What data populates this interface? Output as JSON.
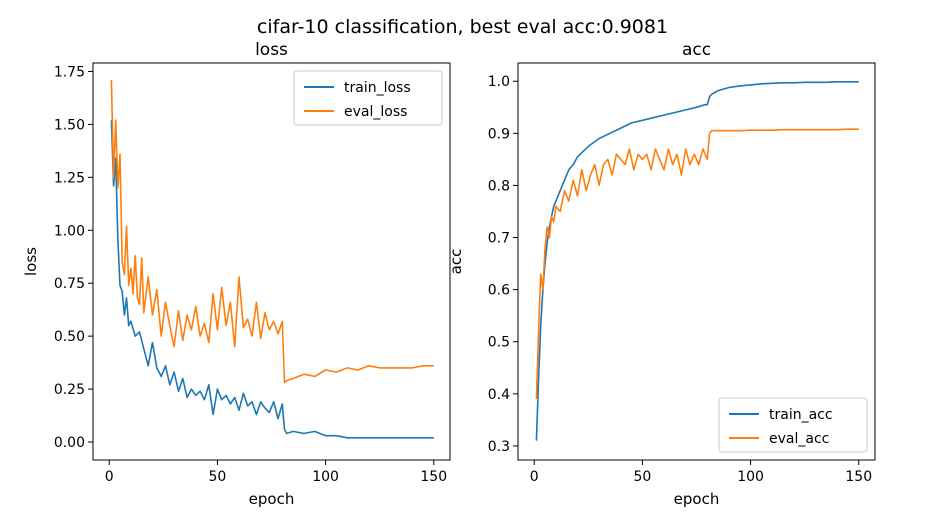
{
  "suptitle": "cifar-10 classification, best eval acc:0.9081",
  "colors": {
    "train": "#1f77b4",
    "eval": "#ff7f0e"
  },
  "chart_data": [
    {
      "type": "line",
      "title": "loss",
      "xlabel": "epoch",
      "ylabel": "loss",
      "xlim": [
        -7.5,
        157.5
      ],
      "ylim": [
        -0.085,
        1.79
      ],
      "xticks": [
        0,
        50,
        100,
        150
      ],
      "xtick_labels": [
        "0",
        "50",
        "100",
        "150"
      ],
      "yticks": [
        0,
        0.25,
        0.5,
        0.75,
        1.0,
        1.25,
        1.5,
        1.75
      ],
      "ytick_labels": [
        "0.00",
        "0.25",
        "0.50",
        "0.75",
        "1.00",
        "1.25",
        "1.50",
        "1.75"
      ],
      "legend": "top-right",
      "grid": false,
      "series": [
        {
          "name": "train_loss",
          "color": "#1f77b4",
          "x": [
            1,
            2,
            3,
            4,
            5,
            6,
            7,
            8,
            9,
            10,
            12,
            14,
            16,
            18,
            20,
            22,
            24,
            26,
            28,
            30,
            32,
            34,
            36,
            38,
            40,
            42,
            44,
            46,
            48,
            50,
            52,
            54,
            56,
            58,
            60,
            62,
            64,
            66,
            68,
            70,
            72,
            74,
            76,
            78,
            80,
            81,
            82,
            85,
            90,
            95,
            100,
            105,
            110,
            115,
            120,
            125,
            130,
            135,
            140,
            145,
            150
          ],
          "y": [
            1.52,
            1.21,
            1.34,
            0.95,
            0.74,
            0.71,
            0.6,
            0.68,
            0.55,
            0.57,
            0.5,
            0.52,
            0.44,
            0.36,
            0.47,
            0.35,
            0.31,
            0.36,
            0.27,
            0.33,
            0.24,
            0.3,
            0.21,
            0.25,
            0.22,
            0.24,
            0.2,
            0.27,
            0.13,
            0.25,
            0.2,
            0.22,
            0.18,
            0.21,
            0.15,
            0.23,
            0.17,
            0.19,
            0.13,
            0.19,
            0.16,
            0.14,
            0.19,
            0.11,
            0.18,
            0.06,
            0.04,
            0.05,
            0.04,
            0.05,
            0.03,
            0.03,
            0.02,
            0.02,
            0.02,
            0.02,
            0.02,
            0.02,
            0.02,
            0.02,
            0.02
          ]
        },
        {
          "name": "eval_loss",
          "color": "#ff7f0e",
          "x": [
            1,
            2,
            3,
            4,
            5,
            6,
            7,
            8,
            9,
            10,
            11,
            12,
            13,
            14,
            15,
            16,
            18,
            20,
            22,
            24,
            26,
            28,
            30,
            32,
            34,
            36,
            38,
            40,
            42,
            44,
            46,
            48,
            50,
            52,
            54,
            56,
            58,
            60,
            62,
            64,
            66,
            68,
            70,
            72,
            74,
            76,
            78,
            80,
            81,
            82,
            85,
            90,
            95,
            100,
            105,
            110,
            115,
            120,
            125,
            130,
            135,
            140,
            145,
            150
          ],
          "y": [
            1.71,
            1.25,
            1.52,
            1.2,
            1.36,
            0.85,
            0.79,
            1.02,
            0.74,
            0.82,
            0.7,
            0.88,
            0.68,
            0.65,
            0.87,
            0.61,
            0.78,
            0.6,
            0.72,
            0.5,
            0.66,
            0.55,
            0.45,
            0.62,
            0.48,
            0.6,
            0.53,
            0.64,
            0.5,
            0.56,
            0.47,
            0.7,
            0.53,
            0.73,
            0.55,
            0.66,
            0.45,
            0.78,
            0.54,
            0.58,
            0.5,
            0.66,
            0.49,
            0.61,
            0.53,
            0.57,
            0.51,
            0.57,
            0.28,
            0.29,
            0.3,
            0.32,
            0.31,
            0.34,
            0.33,
            0.35,
            0.34,
            0.36,
            0.35,
            0.35,
            0.35,
            0.35,
            0.36,
            0.36
          ]
        }
      ]
    },
    {
      "type": "line",
      "title": "acc",
      "xlabel": "epoch",
      "ylabel": "acc",
      "xlim": [
        -7.5,
        157.5
      ],
      "ylim": [
        0.273,
        1.035
      ],
      "xticks": [
        0,
        50,
        100,
        150
      ],
      "xtick_labels": [
        "0",
        "50",
        "100",
        "150"
      ],
      "yticks": [
        0.3,
        0.4,
        0.5,
        0.6,
        0.7,
        0.8,
        0.9,
        1.0
      ],
      "ytick_labels": [
        "0.3",
        "0.4",
        "0.5",
        "0.6",
        "0.7",
        "0.8",
        "0.9",
        "1.0"
      ],
      "legend": "bottom-right",
      "grid": false,
      "series": [
        {
          "name": "train_acc",
          "color": "#1f77b4",
          "x": [
            1,
            2,
            3,
            4,
            5,
            6,
            7,
            8,
            9,
            10,
            12,
            14,
            16,
            18,
            20,
            25,
            30,
            35,
            40,
            45,
            50,
            55,
            60,
            65,
            70,
            75,
            79,
            80,
            81,
            82,
            85,
            90,
            95,
            100,
            105,
            110,
            115,
            120,
            125,
            130,
            135,
            140,
            145,
            150
          ],
          "y": [
            0.31,
            0.43,
            0.53,
            0.6,
            0.65,
            0.69,
            0.72,
            0.74,
            0.76,
            0.77,
            0.79,
            0.81,
            0.83,
            0.84,
            0.855,
            0.875,
            0.89,
            0.9,
            0.91,
            0.92,
            0.925,
            0.93,
            0.935,
            0.94,
            0.945,
            0.95,
            0.955,
            0.955,
            0.97,
            0.975,
            0.982,
            0.988,
            0.991,
            0.993,
            0.995,
            0.996,
            0.997,
            0.997,
            0.998,
            0.998,
            0.998,
            0.999,
            0.999,
            0.999
          ]
        },
        {
          "name": "eval_acc",
          "color": "#ff7f0e",
          "x": [
            1,
            2,
            3,
            4,
            5,
            6,
            7,
            8,
            9,
            10,
            12,
            14,
            16,
            18,
            20,
            22,
            24,
            26,
            28,
            30,
            32,
            34,
            36,
            38,
            40,
            42,
            44,
            46,
            48,
            50,
            52,
            54,
            56,
            58,
            60,
            62,
            64,
            66,
            68,
            70,
            72,
            74,
            76,
            78,
            80,
            81,
            82,
            85,
            90,
            95,
            100,
            105,
            110,
            115,
            120,
            125,
            130,
            135,
            140,
            145,
            150
          ],
          "y": [
            0.39,
            0.52,
            0.63,
            0.6,
            0.68,
            0.72,
            0.7,
            0.74,
            0.73,
            0.76,
            0.75,
            0.79,
            0.77,
            0.81,
            0.78,
            0.83,
            0.79,
            0.82,
            0.84,
            0.8,
            0.84,
            0.85,
            0.82,
            0.86,
            0.85,
            0.84,
            0.87,
            0.83,
            0.86,
            0.85,
            0.86,
            0.83,
            0.87,
            0.85,
            0.83,
            0.87,
            0.84,
            0.86,
            0.82,
            0.87,
            0.84,
            0.86,
            0.84,
            0.87,
            0.85,
            0.9,
            0.905,
            0.905,
            0.905,
            0.905,
            0.906,
            0.906,
            0.906,
            0.907,
            0.907,
            0.907,
            0.907,
            0.907,
            0.907,
            0.908,
            0.908
          ]
        }
      ]
    }
  ]
}
